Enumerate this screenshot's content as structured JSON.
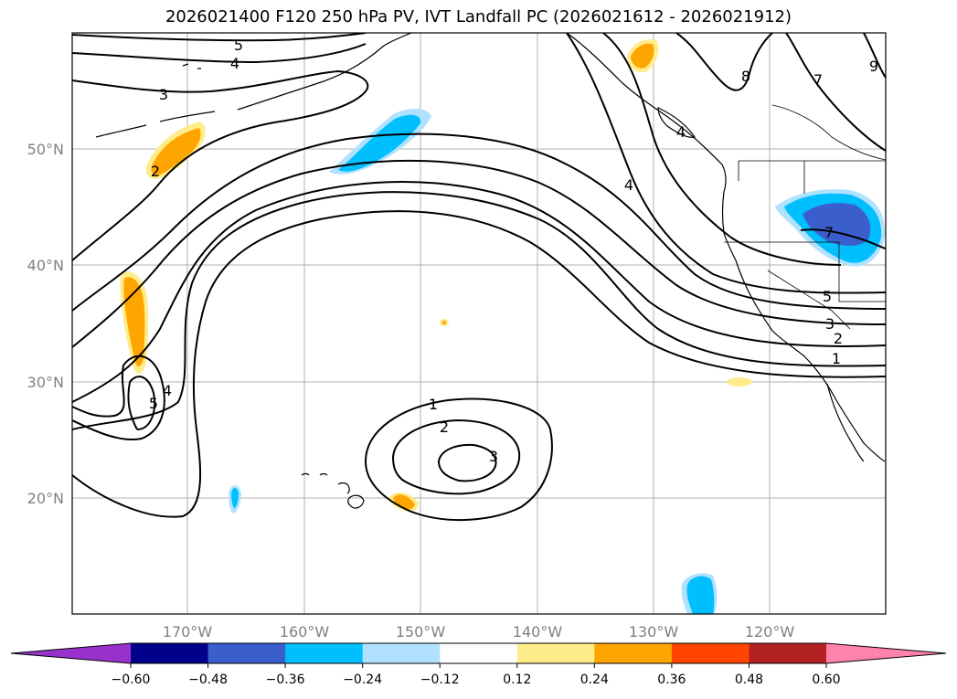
{
  "title": "2026021400 F120 250 hPa PV, IVT Landfall PC (2026021612 - 2026021912)",
  "map": {
    "lat_labels": [
      "50°N",
      "40°N",
      "30°N",
      "20°N"
    ],
    "lon_labels": [
      "170°W",
      "160°W",
      "150°W",
      "140°W",
      "130°W",
      "120°W"
    ],
    "contour_labels": [
      "5",
      "4",
      "3",
      "2",
      "4",
      "5",
      "4",
      "1",
      "2",
      "3",
      "8",
      "7",
      "9",
      "4",
      "7",
      "5",
      "3",
      "2",
      "1"
    ]
  },
  "colorbar": {
    "ticks": [
      "−0.60",
      "−0.48",
      "−0.36",
      "−0.24",
      "−0.12",
      "0.12",
      "0.24",
      "0.36",
      "0.48",
      "0.60"
    ],
    "colors": [
      "#9932cc",
      "#00008b",
      "#3a5fcd",
      "#00bfff",
      "#b0e2ff",
      "#ffffff",
      "#ffec8b",
      "#ffa500",
      "#ff4500",
      "#b22222",
      "#ff82ab"
    ]
  }
}
